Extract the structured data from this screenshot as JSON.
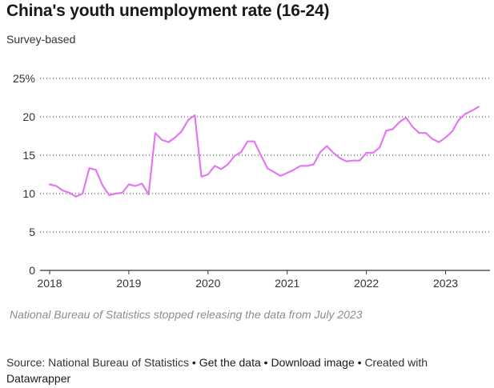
{
  "title": "China's youth unemployment rate (16-24)",
  "subtitle": "Survey-based",
  "note": "National Bureau of Statistics stopped releasing the data from July 2023",
  "footer": {
    "source": "Source: National Bureau of Statistics",
    "separator": "•",
    "get_data": "Get the data",
    "download_image": "Download image",
    "created_with": "Created with",
    "datawrapper": "Datawrapper"
  },
  "chart_data": {
    "type": "line",
    "title": "China's youth unemployment rate (16-24)",
    "subtitle": "Survey-based",
    "xlabel": "",
    "ylabel": "",
    "ylim": [
      0,
      25
    ],
    "y_ticks": [
      0,
      5,
      10,
      15,
      20,
      25
    ],
    "y_tick_labels": [
      "0",
      "5",
      "10",
      "15",
      "20",
      "25%"
    ],
    "x_ticks": [
      2018,
      2019,
      2020,
      2021,
      2022,
      2023
    ],
    "x_tick_labels": [
      "2018",
      "2019",
      "2020",
      "2021",
      "2022",
      "2023"
    ],
    "xlim": [
      2018,
      2023.5
    ],
    "grid": "horizontal dotted",
    "line_color": "#e477f2",
    "series": [
      {
        "x": [
          "2018-01",
          "2018-02",
          "2018-03",
          "2018-04",
          "2018-05",
          "2018-06",
          "2018-07",
          "2018-08",
          "2018-09",
          "2018-10",
          "2018-11",
          "2018-12",
          "2019-01",
          "2019-02",
          "2019-03",
          "2019-04",
          "2019-05",
          "2019-06",
          "2019-07",
          "2019-08",
          "2019-09",
          "2019-10",
          "2019-11",
          "2019-12",
          "2020-01",
          "2020-02",
          "2020-03",
          "2020-04",
          "2020-05",
          "2020-06",
          "2020-07",
          "2020-08",
          "2020-09",
          "2020-10",
          "2020-11",
          "2020-12",
          "2021-01",
          "2021-02",
          "2021-03",
          "2021-04",
          "2021-05",
          "2021-06",
          "2021-07",
          "2021-08",
          "2021-09",
          "2021-10",
          "2021-11",
          "2021-12",
          "2022-01",
          "2022-02",
          "2022-03",
          "2022-04",
          "2022-05",
          "2022-06",
          "2022-07",
          "2022-08",
          "2022-09",
          "2022-10",
          "2022-11",
          "2022-12",
          "2023-01",
          "2023-02",
          "2023-03",
          "2023-04",
          "2023-05",
          "2023-06"
        ],
        "values": [
          11.2,
          11.0,
          10.4,
          10.1,
          9.6,
          10.0,
          13.3,
          13.1,
          11.1,
          9.8,
          10.0,
          10.1,
          11.2,
          11.0,
          11.3,
          9.9,
          17.9,
          17.0,
          16.7,
          17.3,
          18.1,
          19.6,
          20.2,
          12.2,
          12.5,
          13.6,
          13.2,
          13.8,
          14.9,
          15.4,
          16.8,
          16.8,
          15.0,
          13.3,
          12.8,
          12.3,
          12.7,
          13.1,
          13.6,
          13.6,
          13.8,
          15.4,
          16.2,
          15.3,
          14.6,
          14.2,
          14.3,
          14.3,
          15.3,
          15.3,
          16.0,
          18.2,
          18.4,
          19.3,
          19.9,
          18.7,
          17.9,
          17.9,
          17.1,
          16.7,
          17.3,
          18.1,
          19.6,
          20.4,
          20.8,
          21.3
        ]
      }
    ]
  }
}
